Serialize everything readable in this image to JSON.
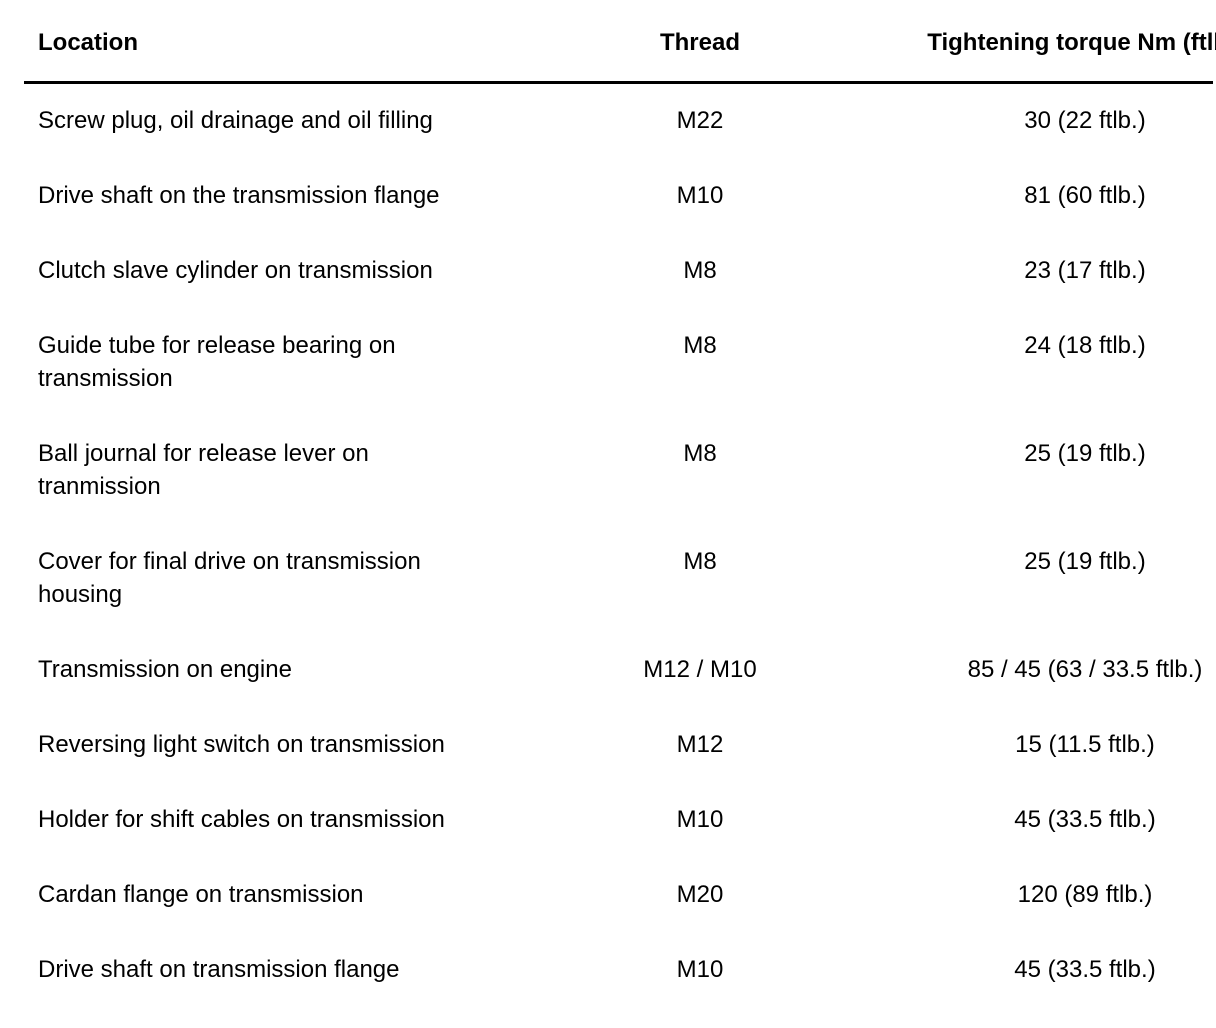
{
  "page": {
    "background": "#ffffff",
    "text_color": "#000000"
  },
  "table": {
    "headers": {
      "location": "Location",
      "thread": "Thread",
      "torque": "Tightening torque Nm (ftlb.)"
    },
    "rows": [
      {
        "location": "Screw plug, oil drainage and oil filling",
        "thread": "M22",
        "torque": "30 (22 ftlb.)"
      },
      {
        "location": "Drive shaft on the transmission flange",
        "thread": "M10",
        "torque": "81 (60 ftlb.)"
      },
      {
        "location": "Clutch slave cylinder on transmission",
        "thread": "M8",
        "torque": "23 (17 ftlb.)"
      },
      {
        "location": "Guide tube for release bearing on\ntransmission",
        "thread": "M8",
        "torque": "24 (18 ftlb.)"
      },
      {
        "location": "Ball journal for release lever on\ntranmission",
        "thread": "M8",
        "torque": "25 (19 ftlb.)"
      },
      {
        "location": "Cover for final drive on transmission\nhousing",
        "thread": "M8",
        "torque": "25 (19 ftlb.)"
      },
      {
        "location": "Transmission on engine",
        "thread": "M12 / M10",
        "torque": "85 / 45 (63 / 33.5 ftlb.)"
      },
      {
        "location": "Reversing light switch on transmission",
        "thread": "M12",
        "torque": "15 (11.5 ftlb.)"
      },
      {
        "location": "Holder for shift cables on transmission",
        "thread": "M10",
        "torque": "45 (33.5 ftlb.)"
      },
      {
        "location": "Cardan flange on transmission",
        "thread": "M20",
        "torque": "120 (89 ftlb.)"
      },
      {
        "location": "Drive shaft on transmission flange",
        "thread": "M10",
        "torque": "45 (33.5 ftlb.)"
      }
    ]
  }
}
